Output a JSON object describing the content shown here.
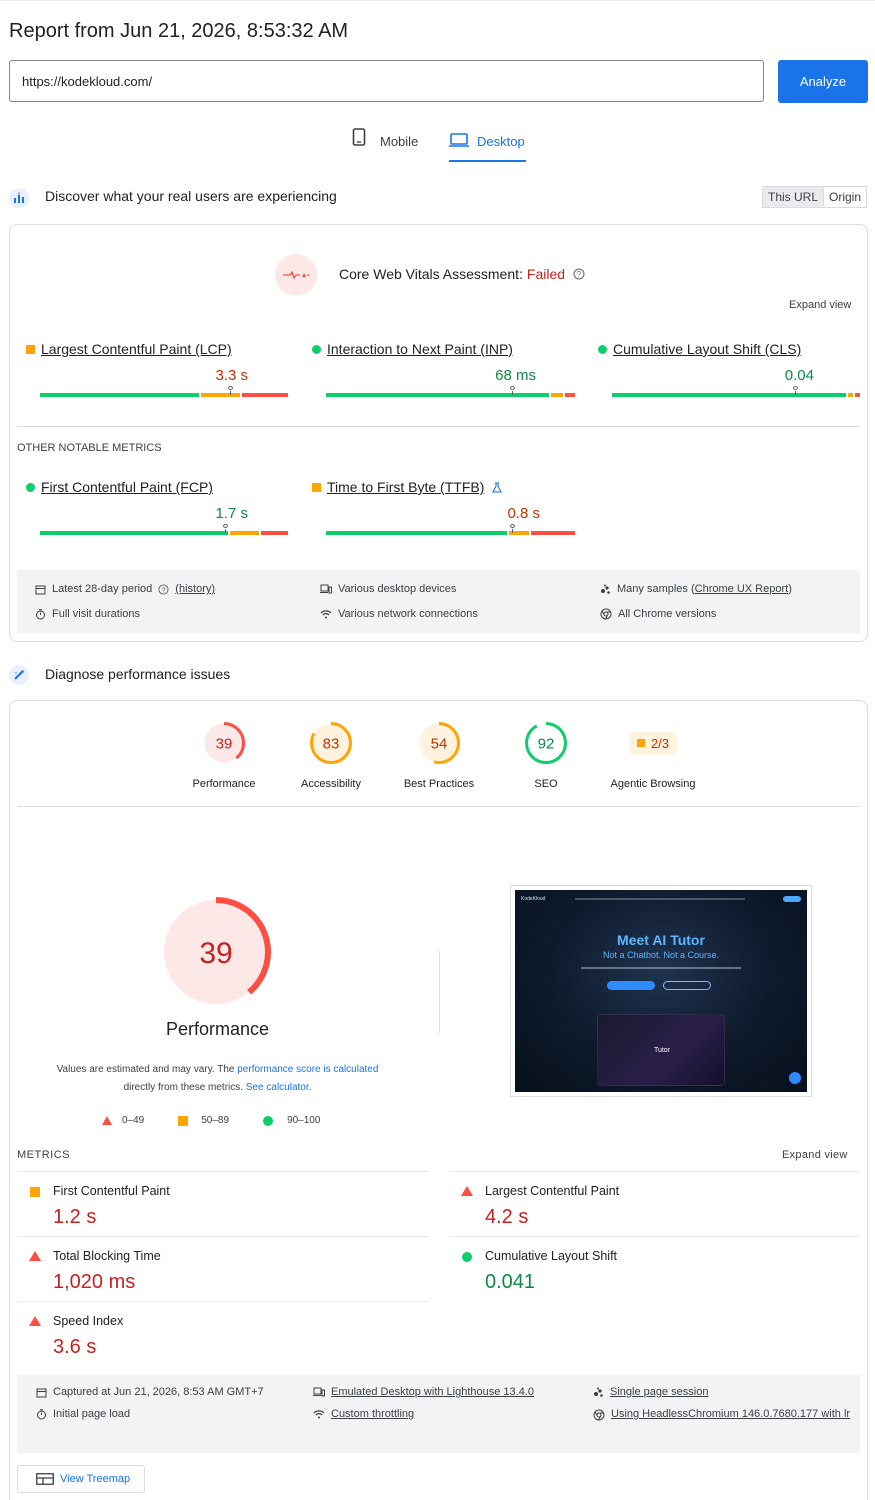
{
  "header": {
    "report_title": "Report from Jun 21, 2026, 8:53:32 AM",
    "url_value": "https://kodekloud.com/",
    "analyze_label": "Analyze",
    "tabs": [
      {
        "label": "Mobile"
      },
      {
        "label": "Desktop"
      }
    ]
  },
  "crux": {
    "section_title": "Discover what your real users are experiencing",
    "toggle": {
      "this_url": "This URL",
      "origin": "Origin"
    },
    "assessment_label": "Core Web Vitals Assessment:",
    "assessment_status": "Failed",
    "expand_view": "Expand view",
    "core_metrics": [
      {
        "name": "Largest Contentful Paint (LCP)",
        "value": "3.3 s",
        "status": "needs-improvement",
        "distribution": [
          0.65,
          0.16,
          0.19
        ],
        "marker": 0.77
      },
      {
        "name": "Interaction to Next Paint (INP)",
        "value": "68 ms",
        "status": "good",
        "distribution": [
          0.91,
          0.05,
          0.04
        ],
        "marker": 0.75
      },
      {
        "name": "Cumulative Layout Shift (CLS)",
        "value": "0.04",
        "status": "good",
        "distribution": [
          0.96,
          0.02,
          0.02
        ],
        "marker": 0.74
      }
    ],
    "other_notable_title": "OTHER NOTABLE METRICS",
    "other_metrics": [
      {
        "name": "First Contentful Paint (FCP)",
        "value": "1.7 s",
        "status": "good",
        "distribution": [
          0.77,
          0.12,
          0.11
        ],
        "marker": 0.75
      },
      {
        "name": "Time to First Byte (TTFB)",
        "value": "0.8 s",
        "status": "needs-improvement",
        "distribution": [
          0.74,
          0.08,
          0.18
        ],
        "marker": 0.75
      }
    ],
    "info": {
      "period": "Latest 28-day period",
      "history": "(history)",
      "durations": "Full visit durations",
      "devices": "Various desktop devices",
      "network": "Various network connections",
      "samples_prefix": "Many samples (",
      "samples_link": "Chrome UX Report",
      "samples_suffix": ")",
      "chrome": "All Chrome versions"
    }
  },
  "diagnose": {
    "section_title": "Diagnose performance issues",
    "scores": [
      {
        "label": "Performance",
        "value": "39",
        "score": 0.39,
        "color": "#ff4e42",
        "bg": "#fce8e6",
        "text": "#c5221f"
      },
      {
        "label": "Accessibility",
        "value": "83",
        "score": 0.83,
        "color": "#ffa400",
        "bg": "#fff3e0",
        "text": "#c33300"
      },
      {
        "label": "Best Practices",
        "value": "54",
        "score": 0.54,
        "color": "#ffa400",
        "bg": "#fff3e0",
        "text": "#c33300"
      },
      {
        "label": "SEO",
        "value": "92",
        "score": 0.92,
        "color": "#0cce6b",
        "bg": "#ffffff",
        "text": "#0d8a43"
      },
      {
        "label": "Agentic Browsing",
        "value": "2/3"
      }
    ],
    "big_score": {
      "value": "39",
      "score": 0.39,
      "label": "Performance"
    },
    "note": {
      "prefix": "Values are estimated and may vary. The ",
      "link1": "performance score is calculated",
      "middle": " directly from these metrics. ",
      "link2": "See calculator."
    },
    "legend": [
      {
        "range": "0–49"
      },
      {
        "range": "50–89"
      },
      {
        "range": "90–100"
      }
    ],
    "screenshot": {
      "headline": "Meet AI Tutor",
      "subline": "Not a Chatbot. Not a Course.",
      "brand": "KodeKloud",
      "video_label": "Tutor"
    },
    "metrics_title": "METRICS",
    "expand_view": "Expand view",
    "metrics": [
      {
        "label": "First Contentful Paint",
        "value": "1.2 s",
        "status": "average"
      },
      {
        "label": "Largest Contentful Paint",
        "value": "4.2 s",
        "status": "fail"
      },
      {
        "label": "Total Blocking Time",
        "value": "1,020 ms",
        "status": "fail"
      },
      {
        "label": "Cumulative Layout Shift",
        "value": "0.041",
        "status": "pass"
      },
      {
        "label": "Speed Index",
        "value": "3.6 s",
        "status": "fail"
      }
    ],
    "run_info": {
      "captured": "Captured at Jun 21, 2026, 8:53 AM GMT+7",
      "initial_load": "Initial page load",
      "emulated": "Emulated Desktop with Lighthouse 13.4.0",
      "throttling": "Custom throttling",
      "session": "Single page session",
      "browser": "Using HeadlessChromium 146.0.7680.177 with lr"
    },
    "treemap_label": "View Treemap"
  }
}
